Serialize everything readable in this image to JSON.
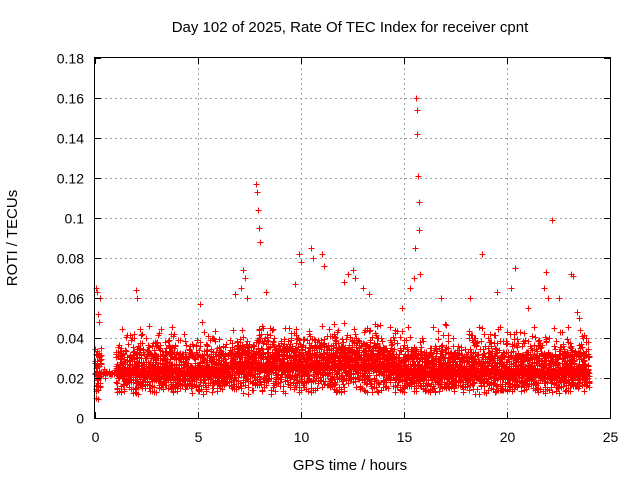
{
  "chart_data": {
    "type": "scatter",
    "title": "Day 102 of 2025, Rate Of TEC Index for receiver cpnt",
    "xlabel": "GPS time / hours",
    "ylabel": "ROTI / TECUs",
    "xlim": [
      0,
      25
    ],
    "ylim": [
      0,
      0.18
    ],
    "xticks": [
      "0",
      "5",
      "10",
      "15",
      "20",
      "25"
    ],
    "yticks": [
      "0",
      "0.02",
      "0.04",
      "0.06",
      "0.08",
      "0.1",
      "0.12",
      "0.14",
      "0.16",
      "0.18"
    ],
    "grid": true,
    "marker": "+",
    "series": [
      {
        "name": "ROTI",
        "color": "#ff0000",
        "description": "Dense ROTI samples mostly between 0.01 and 0.04 TECU/min across 0-24 h, with spikes",
        "x": [
          0.05,
          0.1,
          0.15,
          0.2,
          0.25,
          1.6,
          2.0,
          2.05,
          2.6,
          3.0,
          3.8,
          4.3,
          5.1,
          5.2,
          6.8,
          7.1,
          7.2,
          7.3,
          7.4,
          7.8,
          7.85,
          7.9,
          7.95,
          8.0,
          8.3,
          9.7,
          9.9,
          10.0,
          10.5,
          10.6,
          11.0,
          11.1,
          12.1,
          12.3,
          12.5,
          12.6,
          13.0,
          13.3,
          14.9,
          15.3,
          15.5,
          15.55,
          15.6,
          15.62,
          15.65,
          15.7,
          15.72,
          15.75,
          15.8,
          16.8,
          18.2,
          18.8,
          19.5,
          20.2,
          20.4,
          21.0,
          21.8,
          21.9,
          22.0,
          22.2,
          22.5,
          23.1,
          23.2,
          23.4,
          23.5
        ],
        "y": [
          0.065,
          0.063,
          0.052,
          0.048,
          0.06,
          0.037,
          0.064,
          0.06,
          0.046,
          0.038,
          0.041,
          0.042,
          0.057,
          0.048,
          0.062,
          0.065,
          0.074,
          0.07,
          0.06,
          0.117,
          0.113,
          0.104,
          0.095,
          0.088,
          0.063,
          0.067,
          0.082,
          0.078,
          0.085,
          0.08,
          0.082,
          0.076,
          0.068,
          0.072,
          0.074,
          0.07,
          0.065,
          0.062,
          0.055,
          0.065,
          0.07,
          0.085,
          0.16,
          0.154,
          0.142,
          0.121,
          0.108,
          0.094,
          0.072,
          0.06,
          0.06,
          0.082,
          0.063,
          0.065,
          0.075,
          0.055,
          0.065,
          0.073,
          0.06,
          0.099,
          0.06,
          0.072,
          0.071,
          0.053,
          0.05
        ]
      }
    ]
  }
}
